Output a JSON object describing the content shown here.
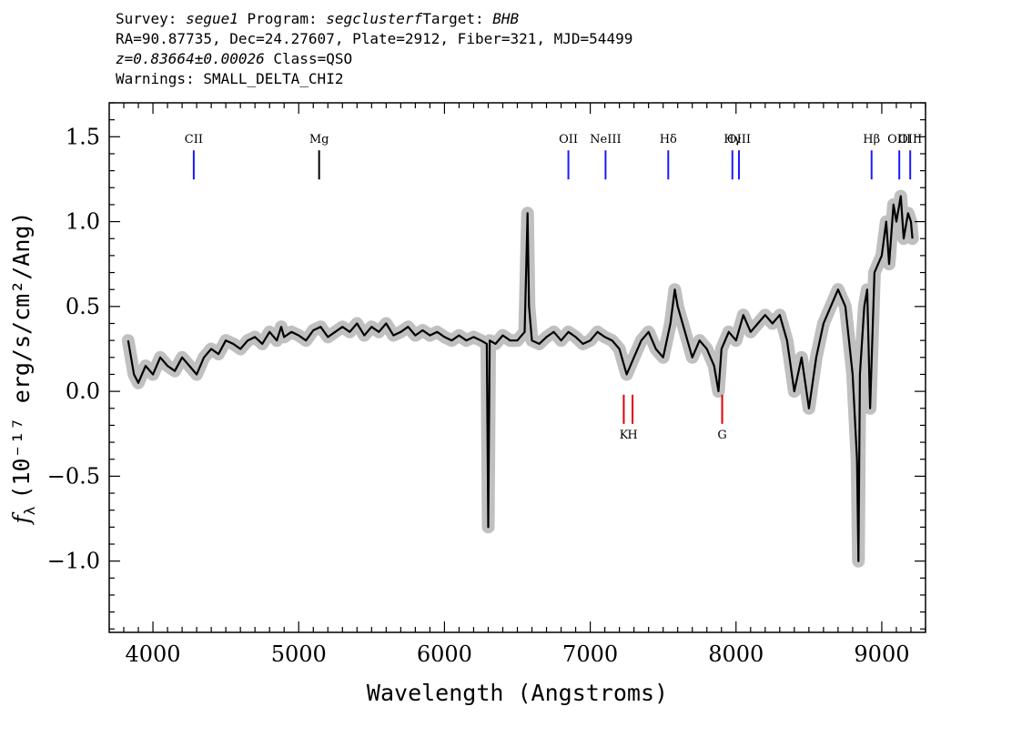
{
  "header": {
    "line1": {
      "survey_label": "Survey:",
      "survey": "segue1",
      "program_label": "Program:",
      "program": "segclusterf",
      "target_label": "Target:",
      "target": "BHB"
    },
    "line2": "RA=90.87735, Dec=24.27607, Plate=2912, Fiber=321, MJD=54499",
    "line3": {
      "redshift": "z=0.83664±0.00026",
      "class": "Class=QSO"
    },
    "line4": "Warnings: SMALL_DELTA_CHI2"
  },
  "chart_data": {
    "type": "line",
    "title": "",
    "xlabel": "Wavelength (Angstroms)",
    "ylabel_prefix": "f",
    "ylabel_sub": "λ",
    "ylabel_units": "(10⁻¹⁷ erg/s/cm²/Ang)",
    "xlim": [
      3700,
      9300
    ],
    "ylim": [
      -1.42,
      1.7
    ],
    "x_ticks": [
      4000,
      5000,
      6000,
      7000,
      8000,
      9000
    ],
    "x_tick_labels": [
      "4000",
      "5000",
      "6000",
      "7000",
      "8000",
      "9000"
    ],
    "y_ticks": [
      -1.0,
      -0.5,
      0.0,
      0.5,
      1.0,
      1.5
    ],
    "y_tick_labels": [
      "−1.0",
      "−0.5",
      "0.0",
      "0.5",
      "1.0",
      "1.5"
    ],
    "grid": false,
    "series": [
      {
        "role": "spectrum",
        "color": "#000000",
        "x": [
          3830,
          3870,
          3900,
          3950,
          4000,
          4050,
          4100,
          4150,
          4200,
          4250,
          4300,
          4350,
          4400,
          4450,
          4500,
          4550,
          4600,
          4650,
          4700,
          4750,
          4800,
          4850,
          4880,
          4900,
          4950,
          5000,
          5050,
          5100,
          5150,
          5200,
          5250,
          5300,
          5350,
          5400,
          5450,
          5500,
          5550,
          5600,
          5650,
          5700,
          5750,
          5800,
          5850,
          5900,
          5950,
          6000,
          6050,
          6100,
          6150,
          6200,
          6250,
          6290,
          6300,
          6310,
          6350,
          6400,
          6450,
          6500,
          6550,
          6570,
          6580,
          6600,
          6650,
          6700,
          6750,
          6800,
          6850,
          6900,
          6950,
          7000,
          7050,
          7100,
          7150,
          7200,
          7250,
          7300,
          7350,
          7400,
          7450,
          7500,
          7550,
          7580,
          7600,
          7650,
          7700,
          7750,
          7800,
          7850,
          7880,
          7900,
          7950,
          8000,
          8050,
          8100,
          8150,
          8200,
          8250,
          8300,
          8350,
          8400,
          8450,
          8500,
          8550,
          8600,
          8650,
          8700,
          8750,
          8800,
          8830,
          8840,
          8850,
          8880,
          8900,
          8920,
          8950,
          9000,
          9030,
          9050,
          9080,
          9100,
          9130,
          9150,
          9180,
          9200,
          9210
        ],
        "y": [
          0.3,
          0.1,
          0.05,
          0.15,
          0.1,
          0.2,
          0.15,
          0.12,
          0.2,
          0.15,
          0.1,
          0.2,
          0.25,
          0.22,
          0.3,
          0.28,
          0.25,
          0.3,
          0.32,
          0.28,
          0.35,
          0.3,
          0.38,
          0.32,
          0.35,
          0.33,
          0.3,
          0.36,
          0.38,
          0.32,
          0.35,
          0.38,
          0.35,
          0.4,
          0.33,
          0.38,
          0.35,
          0.4,
          0.33,
          0.35,
          0.38,
          0.33,
          0.36,
          0.33,
          0.35,
          0.32,
          0.3,
          0.33,
          0.3,
          0.32,
          0.3,
          0.28,
          -0.8,
          0.3,
          0.28,
          0.33,
          0.3,
          0.3,
          0.35,
          1.05,
          0.5,
          0.3,
          0.28,
          0.32,
          0.35,
          0.3,
          0.35,
          0.32,
          0.28,
          0.3,
          0.35,
          0.32,
          0.3,
          0.25,
          0.1,
          0.2,
          0.3,
          0.35,
          0.25,
          0.2,
          0.4,
          0.6,
          0.5,
          0.35,
          0.2,
          0.3,
          0.25,
          0.15,
          0.0,
          0.25,
          0.35,
          0.3,
          0.45,
          0.35,
          0.4,
          0.45,
          0.4,
          0.45,
          0.3,
          0.0,
          0.2,
          -0.1,
          0.2,
          0.4,
          0.5,
          0.6,
          0.5,
          0.1,
          -0.4,
          -1.0,
          0.1,
          0.5,
          0.6,
          -0.1,
          0.7,
          0.8,
          1.0,
          0.75,
          1.1,
          1.0,
          1.15,
          0.9,
          1.05,
          1.0,
          0.9
        ]
      }
    ],
    "lines": [
      {
        "label": "CII",
        "wavelength": 4280,
        "kind": "emission",
        "color": "#1a1aff"
      },
      {
        "label": "Mg",
        "wavelength": 5140,
        "kind": "emission",
        "color": "#000000"
      },
      {
        "label": "OII",
        "wavelength": 6850,
        "kind": "emission",
        "color": "#1a1aff"
      },
      {
        "label": "NeIII",
        "wavelength": 7105,
        "kind": "emission",
        "color": "#1a1aff"
      },
      {
        "label": "Hδ",
        "wavelength": 7535,
        "kind": "emission",
        "color": "#1a1aff"
      },
      {
        "label": "Hγ",
        "wavelength": 7975,
        "kind": "emission",
        "color": "#1a1aff"
      },
      {
        "label": "OIII",
        "wavelength": 8020,
        "kind": "emission",
        "color": "#1a1aff"
      },
      {
        "label": "Hβ",
        "wavelength": 8930,
        "kind": "emission",
        "color": "#1a1aff"
      },
      {
        "label": "OIII",
        "wavelength": 9120,
        "kind": "emission",
        "color": "#1a1aff"
      },
      {
        "label": "OIII",
        "wavelength": 9195,
        "kind": "emission",
        "color": "#1a1aff"
      },
      {
        "label": "K",
        "wavelength": 7230,
        "kind": "absorption",
        "color": "#e00000"
      },
      {
        "label": "H",
        "wavelength": 7290,
        "kind": "absorption",
        "color": "#e00000"
      },
      {
        "label": "G",
        "wavelength": 7905,
        "kind": "absorption",
        "color": "#e00000"
      }
    ],
    "colors": {
      "spectrum": "#000000",
      "error_band": "#c0c0c0",
      "emission": "#1a1aff",
      "absorption": "#e00000"
    }
  }
}
